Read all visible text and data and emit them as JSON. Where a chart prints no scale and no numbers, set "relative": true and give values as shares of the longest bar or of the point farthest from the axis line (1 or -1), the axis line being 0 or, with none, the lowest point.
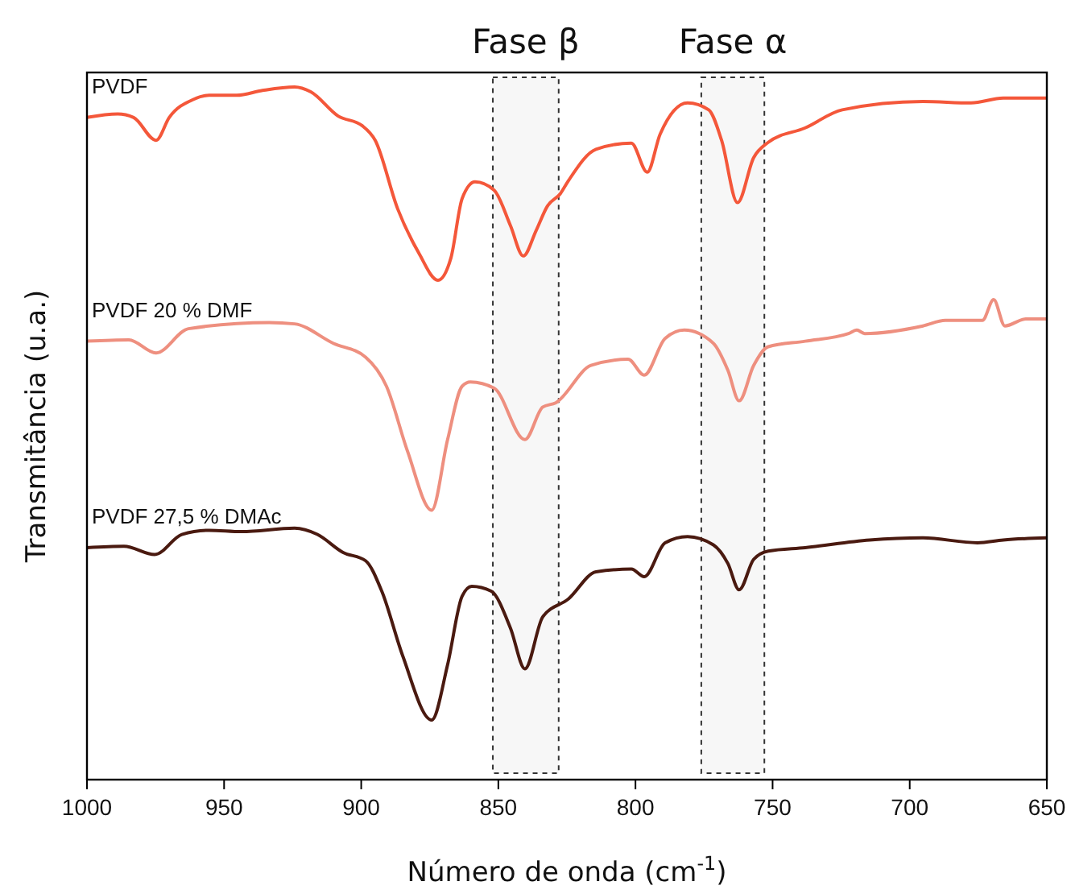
{
  "chart_data": {
    "type": "line",
    "relative": true,
    "xlabel": "Número de onda (cm$^{-1}$)",
    "ylabel": "Transmitância (u.a.)",
    "xlim": [
      1000,
      650
    ],
    "xticks": [
      1000,
      950,
      900,
      850,
      800,
      750,
      700,
      650
    ],
    "bands": [
      {
        "axis": "x",
        "from": 852,
        "to": 828,
        "label": "Fase β"
      },
      {
        "axis": "x",
        "from": 776,
        "to": 753,
        "label": "Fase α"
      }
    ],
    "series": [
      {
        "name": "PVDF",
        "color": "#f4573a",
        "x": [
          1000,
          988.8,
          983,
          974.8,
          970,
          961.2,
          955.4,
          945.4,
          936,
          924.3,
          918.4,
          908.4,
          899.6,
          894.9,
          886.7,
          879.1,
          872,
          867.3,
          863.2,
          858.5,
          851.5,
          845.6,
          840.9,
          836.2,
          832.1,
          827.4,
          824.4,
          814.4,
          801.5,
          795.7,
          791,
          781,
          773.3,
          768.6,
          762.8,
          756.9,
          751.6,
          738.1,
          724.6,
          695.2,
          677.6,
          665.9,
          650
        ],
        "values": [
          0.956,
          0.961,
          0.956,
          0.923,
          0.956,
          0.982,
          0.988,
          0.988,
          0.995,
          1,
          0.993,
          0.958,
          0.944,
          0.923,
          0.824,
          0.761,
          0.721,
          0.753,
          0.839,
          0.863,
          0.851,
          0.8,
          0.756,
          0.793,
          0.828,
          0.846,
          0.865,
          0.91,
          0.919,
          0.877,
          0.932,
          0.977,
          0.967,
          0.923,
          0.833,
          0.898,
          0.92,
          0.941,
          0.967,
          0.979,
          0.977,
          0.984,
          0.984
        ]
      },
      {
        "name": "PVDF 20 % DMF",
        "color": "#ee8f7f",
        "x": [
          1000,
          984.7,
          974.8,
          963,
          933.6,
          924.3,
          910.2,
          898.4,
          890.8,
          883.1,
          874.3,
          868.5,
          863.2,
          860.2,
          851.5,
          840.3,
          833.8,
          829.1,
          816.2,
          802.7,
          796.8,
          789.2,
          782.2,
          771.6,
          766.3,
          762.2,
          756.9,
          751.6,
          738.1,
          722.3,
          719.3,
          716.4,
          695.2,
          687,
          673.5,
          669.4,
          665.3,
          657.7,
          650
        ],
        "values": [
          0.633,
          0.635,
          0.616,
          0.651,
          0.66,
          0.658,
          0.63,
          0.61,
          0.568,
          0.474,
          0.389,
          0.491,
          0.568,
          0.574,
          0.565,
          0.491,
          0.538,
          0.544,
          0.598,
          0.607,
          0.584,
          0.637,
          0.649,
          0.63,
          0.591,
          0.547,
          0.598,
          0.625,
          0.633,
          0.644,
          0.649,
          0.644,
          0.655,
          0.663,
          0.663,
          0.693,
          0.655,
          0.665,
          0.665
        ]
      },
      {
        "name": "PVDF 27,5 % DMAc",
        "color": "#4a1a10",
        "x": [
          1000,
          986.5,
          975.3,
          965.4,
          955.4,
          943.6,
          924.3,
          916,
          906.6,
          898.4,
          892.5,
          884.9,
          874.3,
          868.5,
          863.2,
          859.7,
          852.6,
          845.6,
          840.3,
          833.8,
          824.4,
          814.4,
          801.5,
          796.8,
          789.2,
          781,
          771.6,
          766.3,
          762.2,
          756.9,
          751.6,
          738.1,
          714.6,
          695.2,
          675.3,
          665.9,
          650
        ],
        "values": [
          0.335,
          0.337,
          0.325,
          0.354,
          0.36,
          0.358,
          0.363,
          0.354,
          0.328,
          0.316,
          0.272,
          0.179,
          0.086,
          0.166,
          0.265,
          0.279,
          0.272,
          0.219,
          0.16,
          0.235,
          0.261,
          0.3,
          0.304,
          0.293,
          0.342,
          0.351,
          0.339,
          0.312,
          0.274,
          0.318,
          0.33,
          0.335,
          0.346,
          0.349,
          0.342,
          0.346,
          0.349
        ]
      }
    ]
  }
}
